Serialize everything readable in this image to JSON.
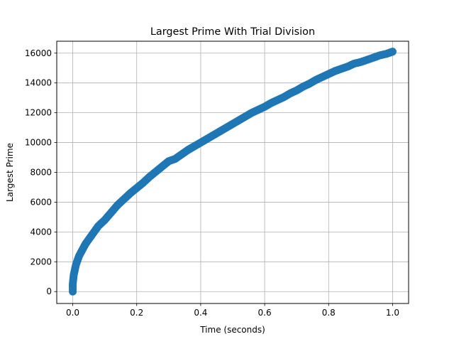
{
  "chart_data": {
    "type": "scatter",
    "title": "Largest Prime With Trial Division",
    "xlabel": "Time (seconds)",
    "ylabel": "Largest Prime",
    "xlim": [
      -0.05,
      1.05
    ],
    "ylim": [
      -800,
      16800
    ],
    "x_ticks": [
      0.0,
      0.2,
      0.4,
      0.6,
      0.8,
      1.0
    ],
    "x_tick_labels": [
      "0.0",
      "0.2",
      "0.4",
      "0.6",
      "0.8",
      "1.0"
    ],
    "y_ticks": [
      0,
      2000,
      4000,
      6000,
      8000,
      10000,
      12000,
      14000,
      16000
    ],
    "y_tick_labels": [
      "0",
      "2000",
      "4000",
      "6000",
      "8000",
      "10000",
      "12000",
      "14000",
      "16000"
    ],
    "grid": true,
    "marker_color": "#1f77b4",
    "series": [
      {
        "x": [
          0.0,
          0.0,
          0.0,
          0.0,
          0.001,
          0.002,
          0.003,
          0.005,
          0.008,
          0.01,
          0.015,
          0.02,
          0.03,
          0.04,
          0.05,
          0.06,
          0.07,
          0.08,
          0.09,
          0.1,
          0.12,
          0.14,
          0.16,
          0.18,
          0.2,
          0.22,
          0.24,
          0.26,
          0.28,
          0.3,
          0.32,
          0.34,
          0.36,
          0.38,
          0.4,
          0.42,
          0.44,
          0.46,
          0.48,
          0.5,
          0.52,
          0.54,
          0.56,
          0.58,
          0.6,
          0.62,
          0.64,
          0.66,
          0.68,
          0.7,
          0.72,
          0.74,
          0.76,
          0.78,
          0.8,
          0.82,
          0.84,
          0.86,
          0.88,
          0.9,
          0.92,
          0.94,
          0.96,
          0.98,
          1.0
        ],
        "y": [
          0,
          150,
          300,
          500,
          700,
          900,
          1100,
          1300,
          1600,
          1800,
          2100,
          2400,
          2800,
          3200,
          3500,
          3800,
          4100,
          4400,
          4600,
          4800,
          5300,
          5800,
          6200,
          6600,
          6950,
          7300,
          7700,
          8050,
          8400,
          8750,
          8900,
          9200,
          9500,
          9750,
          10000,
          10250,
          10500,
          10750,
          11000,
          11250,
          11500,
          11750,
          12000,
          12200,
          12400,
          12650,
          12850,
          13050,
          13300,
          13500,
          13750,
          13950,
          14200,
          14400,
          14600,
          14800,
          14950,
          15100,
          15300,
          15400,
          15550,
          15700,
          15850,
          15950,
          16100
        ]
      }
    ]
  }
}
